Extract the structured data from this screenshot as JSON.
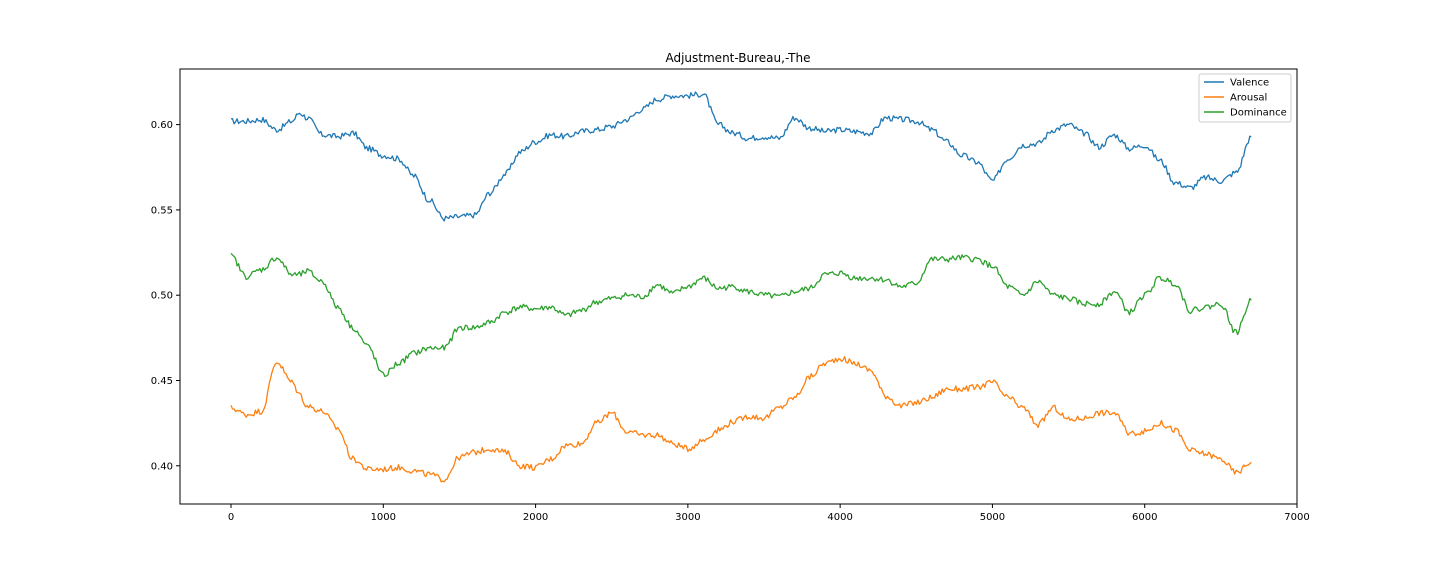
{
  "chart_data": {
    "type": "line",
    "title": "Adjustment-Bureau,-The",
    "xlabel": "",
    "ylabel": "",
    "xlim": [
      -335,
      7000
    ],
    "ylim": [
      0.3776,
      0.6326
    ],
    "xticks": [
      0,
      1000,
      2000,
      3000,
      4000,
      5000,
      6000,
      7000
    ],
    "xtick_labels": [
      "0",
      "1000",
      "2000",
      "3000",
      "4000",
      "5000",
      "6000",
      "7000"
    ],
    "yticks": [
      0.4,
      0.45,
      0.5,
      0.55,
      0.6
    ],
    "ytick_labels": [
      "0.40",
      "0.45",
      "0.50",
      "0.55",
      "0.60"
    ],
    "grid": false,
    "legend_position": "top-right",
    "x": [
      0,
      100,
      200,
      300,
      400,
      450,
      500,
      600,
      700,
      800,
      900,
      1000,
      1100,
      1200,
      1300,
      1400,
      1500,
      1600,
      1700,
      1800,
      1900,
      2000,
      2100,
      2200,
      2300,
      2400,
      2500,
      2600,
      2700,
      2800,
      2900,
      3000,
      3100,
      3200,
      3300,
      3400,
      3500,
      3600,
      3700,
      3800,
      3900,
      4000,
      4100,
      4200,
      4300,
      4400,
      4500,
      4600,
      4700,
      4800,
      4900,
      5000,
      5100,
      5200,
      5300,
      5400,
      5500,
      5600,
      5700,
      5800,
      5900,
      6000,
      6100,
      6200,
      6300,
      6400,
      6500,
      6600,
      6700
    ],
    "series": [
      {
        "name": "Valence",
        "color": "#1f77b4",
        "values": [
          0.602,
          0.602,
          0.603,
          0.597,
          0.602,
          0.607,
          0.604,
          0.594,
          0.593,
          0.595,
          0.586,
          0.582,
          0.58,
          0.57,
          0.556,
          0.545,
          0.546,
          0.547,
          0.56,
          0.571,
          0.584,
          0.59,
          0.594,
          0.593,
          0.596,
          0.597,
          0.599,
          0.603,
          0.609,
          0.615,
          0.617,
          0.617,
          0.618,
          0.6,
          0.595,
          0.592,
          0.593,
          0.592,
          0.604,
          0.598,
          0.596,
          0.597,
          0.596,
          0.595,
          0.604,
          0.603,
          0.602,
          0.597,
          0.59,
          0.582,
          0.578,
          0.567,
          0.58,
          0.588,
          0.589,
          0.597,
          0.6,
          0.595,
          0.587,
          0.594,
          0.586,
          0.588,
          0.579,
          0.566,
          0.563,
          0.569,
          0.567,
          0.572,
          0.593
        ]
      },
      {
        "name": "Arousal",
        "color": "#ff7f0e",
        "values": [
          0.434,
          0.43,
          0.432,
          0.461,
          0.449,
          0.442,
          0.435,
          0.432,
          0.422,
          0.404,
          0.398,
          0.398,
          0.399,
          0.397,
          0.395,
          0.392,
          0.405,
          0.408,
          0.41,
          0.408,
          0.4,
          0.399,
          0.404,
          0.412,
          0.413,
          0.425,
          0.431,
          0.42,
          0.418,
          0.418,
          0.413,
          0.41,
          0.415,
          0.421,
          0.426,
          0.429,
          0.428,
          0.434,
          0.44,
          0.452,
          0.46,
          0.463,
          0.46,
          0.456,
          0.441,
          0.435,
          0.437,
          0.44,
          0.445,
          0.445,
          0.446,
          0.449,
          0.44,
          0.434,
          0.424,
          0.434,
          0.427,
          0.428,
          0.431,
          0.431,
          0.419,
          0.42,
          0.425,
          0.421,
          0.409,
          0.407,
          0.404,
          0.396,
          0.402
        ]
      },
      {
        "name": "Dominance",
        "color": "#2ca02c",
        "values": [
          0.523,
          0.511,
          0.515,
          0.522,
          0.512,
          0.512,
          0.514,
          0.508,
          0.493,
          0.481,
          0.47,
          0.453,
          0.46,
          0.466,
          0.469,
          0.469,
          0.481,
          0.481,
          0.484,
          0.49,
          0.493,
          0.492,
          0.493,
          0.488,
          0.491,
          0.496,
          0.498,
          0.5,
          0.499,
          0.506,
          0.501,
          0.505,
          0.51,
          0.504,
          0.505,
          0.502,
          0.5,
          0.499,
          0.502,
          0.504,
          0.512,
          0.513,
          0.51,
          0.51,
          0.509,
          0.505,
          0.507,
          0.521,
          0.521,
          0.522,
          0.521,
          0.517,
          0.505,
          0.5,
          0.508,
          0.5,
          0.498,
          0.495,
          0.495,
          0.502,
          0.49,
          0.5,
          0.51,
          0.507,
          0.491,
          0.493,
          0.495,
          0.478,
          0.497
        ]
      }
    ]
  }
}
